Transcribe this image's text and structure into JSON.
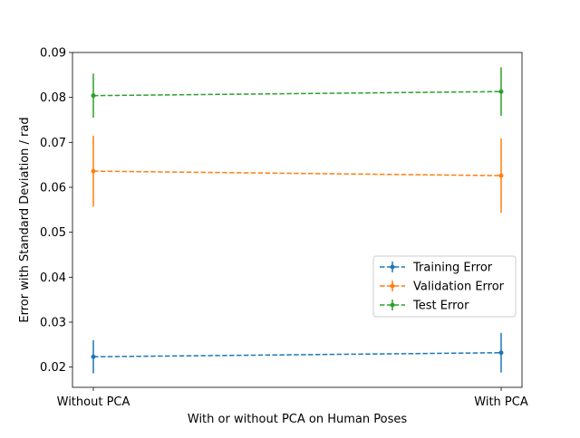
{
  "chart_data": {
    "type": "line",
    "categories": [
      "Without PCA",
      "With PCA"
    ],
    "xlabel": "With or without PCA on Human Poses",
    "ylabel": "Error with Standard Deviation / rad",
    "ylim": [
      0.0155,
      0.09
    ],
    "yticks": [
      "0.02",
      "0.03",
      "0.04",
      "0.05",
      "0.06",
      "0.07",
      "0.08",
      "0.09"
    ],
    "grid": false,
    "legend_position": "center-right",
    "series": [
      {
        "name": "Training Error",
        "color": "#1f77b4",
        "values": [
          0.0223,
          0.0232
        ],
        "errors": [
          0.0037,
          0.0044
        ]
      },
      {
        "name": "Validation Error",
        "color": "#ff7f0e",
        "values": [
          0.0636,
          0.0626
        ],
        "errors": [
          0.0079,
          0.0083
        ]
      },
      {
        "name": "Test Error",
        "color": "#2ca02c",
        "values": [
          0.0804,
          0.0813
        ],
        "errors": [
          0.0049,
          0.0054
        ]
      }
    ]
  }
}
